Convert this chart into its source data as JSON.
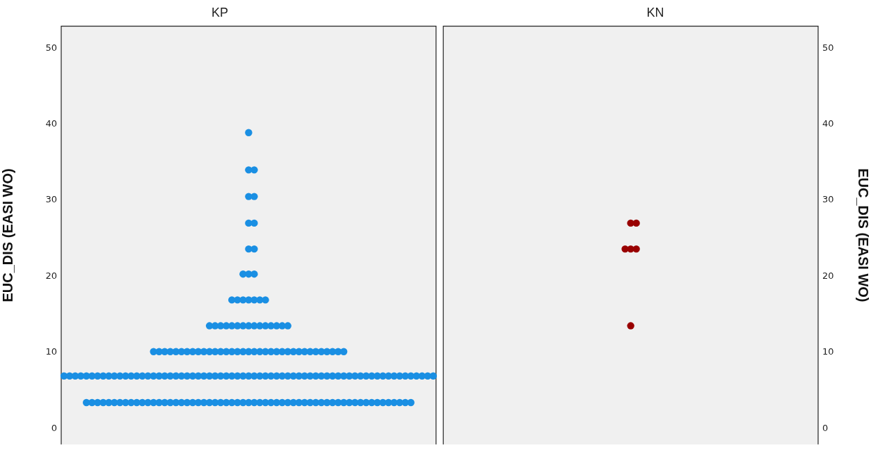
{
  "chart_data": [
    {
      "type": "scatter",
      "title": "KP",
      "ylabel": "EUC_DIS (EASI WO)",
      "marker": "circle",
      "categories": [
        null,
        null,
        null,
        null,
        null,
        null,
        null,
        null,
        null,
        null,
        null,
        null,
        null,
        null,
        null,
        null,
        null,
        null,
        null,
        null,
        null,
        null,
        null,
        null,
        null,
        null,
        null,
        null,
        null,
        null,
        null,
        null,
        null,
        null,
        null,
        null,
        null,
        null,
        null,
        null,
        null,
        null,
        null,
        null,
        null,
        null,
        null,
        null,
        null,
        null,
        null,
        null,
        null,
        null,
        null,
        null,
        null,
        null,
        null,
        null,
        null,
        null,
        null,
        null,
        null,
        null,
        null
      ],
      "series": [
        {
          "color": "#1a8fe3",
          "values": [
            null,
            null,
            null,
            null,
            3.4,
            3.4,
            3.4,
            3.4,
            3.4,
            3.4,
            3.4,
            3.4,
            3.4,
            3.4,
            3.4,
            3.4,
            3.4,
            3.4,
            3.4,
            3.4,
            3.4,
            3.4,
            3.4,
            3.4,
            3.4,
            3.4,
            3.4,
            3.4,
            3.4,
            3.4,
            3.4,
            3.4,
            3.4,
            3.4,
            3.4,
            3.4,
            3.4,
            3.4,
            3.4,
            3.4,
            3.4,
            3.4,
            3.4,
            3.4,
            3.4,
            3.4,
            3.4,
            3.4,
            3.4,
            3.4,
            3.4,
            3.4,
            3.4,
            3.4,
            3.4,
            3.4,
            3.4,
            3.4,
            3.4,
            3.4,
            3.4,
            3.4,
            3.4,
            null,
            null,
            null,
            null
          ]
        },
        {
          "color": "#1a8fe3",
          "values": [
            6.9,
            6.9,
            6.9,
            6.9,
            6.9,
            6.9,
            6.9,
            6.9,
            6.9,
            6.9,
            6.9,
            6.9,
            6.9,
            6.9,
            6.9,
            6.9,
            6.9,
            6.9,
            6.9,
            6.9,
            6.9,
            6.9,
            6.9,
            6.9,
            6.9,
            6.9,
            6.9,
            6.9,
            6.9,
            6.9,
            6.9,
            6.9,
            6.9,
            6.9,
            6.9,
            6.9,
            6.9,
            6.9,
            6.9,
            6.9,
            6.9,
            6.9,
            6.9,
            6.9,
            6.9,
            6.9,
            6.9,
            6.9,
            6.9,
            6.9,
            6.9,
            6.9,
            6.9,
            6.9,
            6.9,
            6.9,
            6.9,
            6.9,
            6.9,
            6.9,
            6.9,
            6.9,
            6.9,
            6.9,
            6.9,
            6.9,
            6.9
          ]
        },
        {
          "color": "#1a8fe3",
          "values": [
            null,
            null,
            null,
            null,
            null,
            null,
            null,
            null,
            null,
            null,
            null,
            null,
            null,
            null,
            null,
            null,
            10.1,
            10.1,
            10.1,
            10.1,
            10.1,
            10.1,
            10.1,
            10.1,
            10.1,
            10.1,
            10.1,
            10.1,
            10.1,
            10.1,
            10.1,
            10.1,
            10.1,
            10.1,
            10.1,
            10.1,
            10.1,
            10.1,
            10.1,
            10.1,
            10.1,
            10.1,
            10.1,
            10.1,
            10.1,
            10.1,
            10.1,
            10.1,
            10.1,
            10.1,
            10.1,
            null,
            null,
            null,
            null,
            null,
            null,
            null,
            null,
            null,
            null,
            null,
            null,
            null,
            null,
            null,
            null
          ]
        },
        {
          "color": "#1a8fe3",
          "values": [
            null,
            null,
            null,
            null,
            null,
            null,
            null,
            null,
            null,
            null,
            null,
            null,
            null,
            null,
            null,
            null,
            null,
            null,
            null,
            null,
            null,
            null,
            null,
            null,
            null,
            null,
            13.5,
            13.5,
            13.5,
            13.5,
            13.5,
            13.5,
            13.5,
            13.5,
            13.5,
            13.5,
            13.5,
            13.5,
            13.5,
            13.5,
            13.5,
            null,
            null,
            null,
            null,
            null,
            null,
            null,
            null,
            null,
            null,
            null,
            null,
            null,
            null,
            null,
            null,
            null,
            null,
            null,
            null,
            null,
            null,
            null,
            null,
            null,
            null
          ]
        },
        {
          "color": "#1a8fe3",
          "values": [
            null,
            null,
            null,
            null,
            null,
            null,
            null,
            null,
            null,
            null,
            null,
            null,
            null,
            null,
            null,
            null,
            null,
            null,
            null,
            null,
            null,
            null,
            null,
            null,
            null,
            null,
            null,
            null,
            null,
            null,
            16.9,
            16.9,
            16.9,
            16.9,
            16.9,
            16.9,
            16.9,
            null,
            null,
            null,
            null,
            null,
            null,
            null,
            null,
            null,
            null,
            null,
            null,
            null,
            null,
            null,
            null,
            null,
            null,
            null,
            null,
            null,
            null,
            null,
            null,
            null,
            null,
            null,
            null,
            null,
            null
          ]
        },
        {
          "color": "#1a8fe3",
          "values": [
            null,
            null,
            null,
            null,
            null,
            null,
            null,
            null,
            null,
            null,
            null,
            null,
            null,
            null,
            null,
            null,
            null,
            null,
            null,
            null,
            null,
            null,
            null,
            null,
            null,
            null,
            null,
            null,
            null,
            null,
            null,
            null,
            20.3,
            20.3,
            20.3,
            null,
            null,
            null,
            null,
            null,
            null,
            null,
            null,
            null,
            null,
            null,
            null,
            null,
            null,
            null,
            null,
            null,
            null,
            null,
            null,
            null,
            null,
            null,
            null,
            null,
            null,
            null,
            null,
            null,
            null,
            null,
            null
          ]
        },
        {
          "color": "#1a8fe3",
          "values": [
            null,
            null,
            null,
            null,
            null,
            null,
            null,
            null,
            null,
            null,
            null,
            null,
            null,
            null,
            null,
            null,
            null,
            null,
            null,
            null,
            null,
            null,
            null,
            null,
            null,
            null,
            null,
            null,
            null,
            null,
            null,
            null,
            null,
            23.6,
            23.6,
            null,
            null,
            null,
            null,
            null,
            null,
            null,
            null,
            null,
            null,
            null,
            null,
            null,
            null,
            null,
            null,
            null,
            null,
            null,
            null,
            null,
            null,
            null,
            null,
            null,
            null,
            null,
            null,
            null,
            null,
            null,
            null
          ]
        },
        {
          "color": "#1a8fe3",
          "values": [
            null,
            null,
            null,
            null,
            null,
            null,
            null,
            null,
            null,
            null,
            null,
            null,
            null,
            null,
            null,
            null,
            null,
            null,
            null,
            null,
            null,
            null,
            null,
            null,
            null,
            null,
            null,
            null,
            null,
            null,
            null,
            null,
            null,
            27.0,
            27.0,
            null,
            null,
            null,
            null,
            null,
            null,
            null,
            null,
            null,
            null,
            null,
            null,
            null,
            null,
            null,
            null,
            null,
            null,
            null,
            null,
            null,
            null,
            null,
            null,
            null,
            null,
            null,
            null,
            null,
            null,
            null,
            null
          ]
        },
        {
          "color": "#1a8fe3",
          "values": [
            null,
            null,
            null,
            null,
            null,
            null,
            null,
            null,
            null,
            null,
            null,
            null,
            null,
            null,
            null,
            null,
            null,
            null,
            null,
            null,
            null,
            null,
            null,
            null,
            null,
            null,
            null,
            null,
            null,
            null,
            null,
            null,
            null,
            30.5,
            30.5,
            null,
            null,
            null,
            null,
            null,
            null,
            null,
            null,
            null,
            null,
            null,
            null,
            null,
            null,
            null,
            null,
            null,
            null,
            null,
            null,
            null,
            null,
            null,
            null,
            null,
            null,
            null,
            null,
            null,
            null,
            null,
            null
          ]
        },
        {
          "color": "#1a8fe3",
          "values": [
            null,
            null,
            null,
            null,
            null,
            null,
            null,
            null,
            null,
            null,
            null,
            null,
            null,
            null,
            null,
            null,
            null,
            null,
            null,
            null,
            null,
            null,
            null,
            null,
            null,
            null,
            null,
            null,
            null,
            null,
            null,
            null,
            null,
            34.0,
            34.0,
            null,
            null,
            null,
            null,
            null,
            null,
            null,
            null,
            null,
            null,
            null,
            null,
            null,
            null,
            null,
            null,
            null,
            null,
            null,
            null,
            null,
            null,
            null,
            null,
            null,
            null,
            null,
            null,
            null,
            null,
            null,
            null
          ]
        },
        {
          "color": "#1a8fe3",
          "values": [
            null,
            null,
            null,
            null,
            null,
            null,
            null,
            null,
            null,
            null,
            null,
            null,
            null,
            null,
            null,
            null,
            null,
            null,
            null,
            null,
            null,
            null,
            null,
            null,
            null,
            null,
            null,
            null,
            null,
            null,
            null,
            null,
            null,
            38.9,
            null,
            null,
            null,
            null,
            null,
            null,
            null,
            null,
            null,
            null,
            null,
            null,
            null,
            null,
            null,
            null,
            null,
            null,
            null,
            null,
            null,
            null,
            null,
            null,
            null,
            null,
            null,
            null,
            null,
            null,
            null,
            null,
            null
          ]
        }
      ],
      "ylim": [
        -2.1,
        52.9
      ],
      "yticks": [
        0,
        10,
        20,
        30,
        40,
        50
      ]
    },
    {
      "type": "scatter",
      "title": "KN",
      "ylabel": "EUC_DIS (EASI WO)",
      "marker": "circle",
      "categories": [
        null,
        null,
        null,
        null,
        null,
        null,
        null,
        null,
        null,
        null,
        null,
        null,
        null,
        null,
        null,
        null,
        null,
        null,
        null,
        null,
        null,
        null,
        null,
        null,
        null,
        null,
        null,
        null,
        null,
        null,
        null,
        null,
        null,
        null,
        null,
        null,
        null,
        null,
        null,
        null,
        null,
        null,
        null,
        null,
        null,
        null,
        null,
        null,
        null,
        null,
        null,
        null,
        null,
        null,
        null,
        null,
        null,
        null,
        null,
        null,
        null,
        null,
        null,
        null,
        null,
        null,
        null
      ],
      "series": [
        {
          "color": "#990000",
          "values": [
            null,
            null,
            null,
            null,
            null,
            null,
            null,
            null,
            null,
            null,
            null,
            null,
            null,
            null,
            null,
            null,
            null,
            null,
            null,
            null,
            null,
            null,
            null,
            null,
            null,
            null,
            null,
            null,
            null,
            null,
            null,
            null,
            null,
            13.5,
            null,
            null,
            null,
            null,
            null,
            null,
            null,
            null,
            null,
            null,
            null,
            null,
            null,
            null,
            null,
            null,
            null,
            null,
            null,
            null,
            null,
            null,
            null,
            null,
            null,
            null,
            null,
            null,
            null,
            null,
            null,
            null,
            null
          ]
        },
        {
          "color": "#990000",
          "values": [
            null,
            null,
            null,
            null,
            null,
            null,
            null,
            null,
            null,
            null,
            null,
            null,
            null,
            null,
            null,
            null,
            null,
            null,
            null,
            null,
            null,
            null,
            null,
            null,
            null,
            null,
            null,
            null,
            null,
            null,
            null,
            null,
            23.6,
            23.6,
            23.6,
            null,
            null,
            null,
            null,
            null,
            null,
            null,
            null,
            null,
            null,
            null,
            null,
            null,
            null,
            null,
            null,
            null,
            null,
            null,
            null,
            null,
            null,
            null,
            null,
            null,
            null,
            null,
            null,
            null,
            null,
            null,
            null
          ]
        },
        {
          "color": "#990000",
          "values": [
            null,
            null,
            null,
            null,
            null,
            null,
            null,
            null,
            null,
            null,
            null,
            null,
            null,
            null,
            null,
            null,
            null,
            null,
            null,
            null,
            null,
            null,
            null,
            null,
            null,
            null,
            null,
            null,
            null,
            null,
            null,
            null,
            null,
            27.0,
            27.0,
            null,
            null,
            null,
            null,
            null,
            null,
            null,
            null,
            null,
            null,
            null,
            null,
            null,
            null,
            null,
            null,
            null,
            null,
            null,
            null,
            null,
            null,
            null,
            null,
            null,
            null,
            null,
            null,
            null,
            null,
            null,
            null
          ]
        }
      ],
      "ylim": [
        -2.1,
        52.9
      ],
      "yticks": [
        0,
        10,
        20,
        30,
        40,
        50
      ]
    }
  ]
}
